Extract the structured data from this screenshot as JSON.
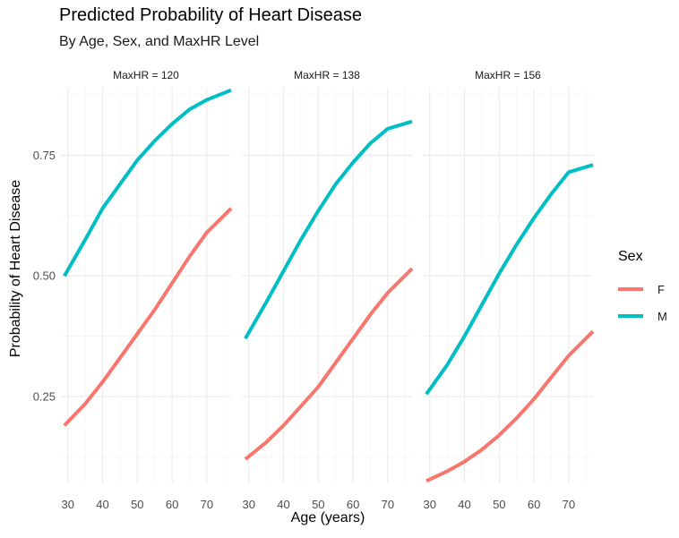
{
  "chart_data": {
    "type": "line",
    "title": "Predicted Probability of Heart Disease",
    "subtitle": "By Age, Sex, and MaxHR Level",
    "xlabel": "Age (years)",
    "ylabel": "Probability of Heart Disease",
    "xlim": [
      28,
      77
    ],
    "ylim": [
      0.07,
      0.89
    ],
    "x_ticks": [
      30,
      40,
      50,
      60,
      70
    ],
    "y_ticks": [
      0.25,
      0.5,
      0.75
    ],
    "x_tick_labels": [
      "30",
      "40",
      "50",
      "60",
      "70"
    ],
    "y_tick_labels": [
      "0.25",
      "0.50",
      "0.75"
    ],
    "grid": true,
    "legend": {
      "title": "Sex",
      "position": "right",
      "entries": [
        {
          "label": "F",
          "color": "#F8766D"
        },
        {
          "label": "M",
          "color": "#00BFC4"
        }
      ]
    },
    "facets": [
      {
        "label": "MaxHR = 120",
        "series": [
          {
            "name": "F",
            "color": "#F8766D",
            "x": [
              29,
              35,
              40,
              45,
              50,
              55,
              60,
              65,
              70,
              77
            ],
            "y": [
              0.19,
              0.235,
              0.28,
              0.33,
              0.38,
              0.43,
              0.485,
              0.54,
              0.59,
              0.64
            ]
          },
          {
            "name": "M",
            "color": "#00BFC4",
            "x": [
              29,
              35,
              40,
              45,
              50,
              55,
              60,
              65,
              70,
              77
            ],
            "y": [
              0.5,
              0.575,
              0.64,
              0.69,
              0.74,
              0.78,
              0.815,
              0.845,
              0.865,
              0.885
            ]
          }
        ]
      },
      {
        "label": "MaxHR = 138",
        "series": [
          {
            "name": "F",
            "color": "#F8766D",
            "x": [
              29,
              35,
              40,
              45,
              50,
              55,
              60,
              65,
              70,
              77
            ],
            "y": [
              0.12,
              0.155,
              0.19,
              0.23,
              0.27,
              0.32,
              0.37,
              0.42,
              0.465,
              0.515
            ]
          },
          {
            "name": "M",
            "color": "#00BFC4",
            "x": [
              29,
              35,
              40,
              45,
              50,
              55,
              60,
              65,
              70,
              77
            ],
            "y": [
              0.37,
              0.445,
              0.51,
              0.575,
              0.635,
              0.69,
              0.735,
              0.775,
              0.805,
              0.82
            ]
          }
        ]
      },
      {
        "label": "MaxHR = 156",
        "series": [
          {
            "name": "F",
            "color": "#F8766D",
            "x": [
              29,
              35,
              40,
              45,
              50,
              55,
              60,
              65,
              70,
              77
            ],
            "y": [
              0.075,
              0.095,
              0.115,
              0.14,
              0.17,
              0.205,
              0.245,
              0.29,
              0.335,
              0.385
            ]
          },
          {
            "name": "M",
            "color": "#00BFC4",
            "x": [
              29,
              35,
              40,
              45,
              50,
              55,
              60,
              65,
              70,
              77
            ],
            "y": [
              0.255,
              0.315,
              0.375,
              0.44,
              0.505,
              0.565,
              0.62,
              0.67,
              0.715,
              0.73
            ]
          }
        ]
      }
    ]
  }
}
